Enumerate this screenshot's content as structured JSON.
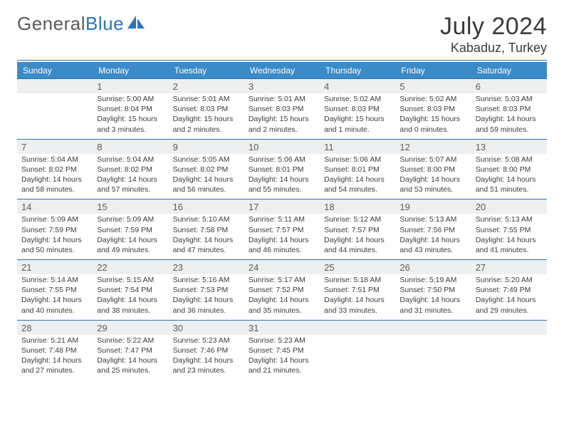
{
  "brand": {
    "name1": "General",
    "name2": "Blue",
    "logo_fill": "#2d74b8"
  },
  "header": {
    "month_title": "July 2024",
    "location": "Kabaduz, Turkey"
  },
  "colors": {
    "header_bg": "#3b8bc8",
    "header_text": "#ffffff",
    "rule": "#2e72af",
    "daynum_bg": "#edeff0",
    "page_bg": "#ffffff",
    "text": "#3c3c3c"
  },
  "weekdays": [
    "Sunday",
    "Monday",
    "Tuesday",
    "Wednesday",
    "Thursday",
    "Friday",
    "Saturday"
  ],
  "weeks": [
    {
      "daynums": [
        "",
        "1",
        "2",
        "3",
        "4",
        "5",
        "6"
      ],
      "cells": [
        null,
        {
          "sunrise": "Sunrise: 5:00 AM",
          "sunset": "Sunset: 8:04 PM",
          "day1": "Daylight: 15 hours",
          "day2": "and 3 minutes."
        },
        {
          "sunrise": "Sunrise: 5:01 AM",
          "sunset": "Sunset: 8:03 PM",
          "day1": "Daylight: 15 hours",
          "day2": "and 2 minutes."
        },
        {
          "sunrise": "Sunrise: 5:01 AM",
          "sunset": "Sunset: 8:03 PM",
          "day1": "Daylight: 15 hours",
          "day2": "and 2 minutes."
        },
        {
          "sunrise": "Sunrise: 5:02 AM",
          "sunset": "Sunset: 8:03 PM",
          "day1": "Daylight: 15 hours",
          "day2": "and 1 minute."
        },
        {
          "sunrise": "Sunrise: 5:02 AM",
          "sunset": "Sunset: 8:03 PM",
          "day1": "Daylight: 15 hours",
          "day2": "and 0 minutes."
        },
        {
          "sunrise": "Sunrise: 5:03 AM",
          "sunset": "Sunset: 8:03 PM",
          "day1": "Daylight: 14 hours",
          "day2": "and 59 minutes."
        }
      ]
    },
    {
      "daynums": [
        "7",
        "8",
        "9",
        "10",
        "11",
        "12",
        "13"
      ],
      "cells": [
        {
          "sunrise": "Sunrise: 5:04 AM",
          "sunset": "Sunset: 8:02 PM",
          "day1": "Daylight: 14 hours",
          "day2": "and 58 minutes."
        },
        {
          "sunrise": "Sunrise: 5:04 AM",
          "sunset": "Sunset: 8:02 PM",
          "day1": "Daylight: 14 hours",
          "day2": "and 57 minutes."
        },
        {
          "sunrise": "Sunrise: 5:05 AM",
          "sunset": "Sunset: 8:02 PM",
          "day1": "Daylight: 14 hours",
          "day2": "and 56 minutes."
        },
        {
          "sunrise": "Sunrise: 5:06 AM",
          "sunset": "Sunset: 8:01 PM",
          "day1": "Daylight: 14 hours",
          "day2": "and 55 minutes."
        },
        {
          "sunrise": "Sunrise: 5:06 AM",
          "sunset": "Sunset: 8:01 PM",
          "day1": "Daylight: 14 hours",
          "day2": "and 54 minutes."
        },
        {
          "sunrise": "Sunrise: 5:07 AM",
          "sunset": "Sunset: 8:00 PM",
          "day1": "Daylight: 14 hours",
          "day2": "and 53 minutes."
        },
        {
          "sunrise": "Sunrise: 5:08 AM",
          "sunset": "Sunset: 8:00 PM",
          "day1": "Daylight: 14 hours",
          "day2": "and 51 minutes."
        }
      ]
    },
    {
      "daynums": [
        "14",
        "15",
        "16",
        "17",
        "18",
        "19",
        "20"
      ],
      "cells": [
        {
          "sunrise": "Sunrise: 5:09 AM",
          "sunset": "Sunset: 7:59 PM",
          "day1": "Daylight: 14 hours",
          "day2": "and 50 minutes."
        },
        {
          "sunrise": "Sunrise: 5:09 AM",
          "sunset": "Sunset: 7:59 PM",
          "day1": "Daylight: 14 hours",
          "day2": "and 49 minutes."
        },
        {
          "sunrise": "Sunrise: 5:10 AM",
          "sunset": "Sunset: 7:58 PM",
          "day1": "Daylight: 14 hours",
          "day2": "and 47 minutes."
        },
        {
          "sunrise": "Sunrise: 5:11 AM",
          "sunset": "Sunset: 7:57 PM",
          "day1": "Daylight: 14 hours",
          "day2": "and 46 minutes."
        },
        {
          "sunrise": "Sunrise: 5:12 AM",
          "sunset": "Sunset: 7:57 PM",
          "day1": "Daylight: 14 hours",
          "day2": "and 44 minutes."
        },
        {
          "sunrise": "Sunrise: 5:13 AM",
          "sunset": "Sunset: 7:56 PM",
          "day1": "Daylight: 14 hours",
          "day2": "and 43 minutes."
        },
        {
          "sunrise": "Sunrise: 5:13 AM",
          "sunset": "Sunset: 7:55 PM",
          "day1": "Daylight: 14 hours",
          "day2": "and 41 minutes."
        }
      ]
    },
    {
      "daynums": [
        "21",
        "22",
        "23",
        "24",
        "25",
        "26",
        "27"
      ],
      "cells": [
        {
          "sunrise": "Sunrise: 5:14 AM",
          "sunset": "Sunset: 7:55 PM",
          "day1": "Daylight: 14 hours",
          "day2": "and 40 minutes."
        },
        {
          "sunrise": "Sunrise: 5:15 AM",
          "sunset": "Sunset: 7:54 PM",
          "day1": "Daylight: 14 hours",
          "day2": "and 38 minutes."
        },
        {
          "sunrise": "Sunrise: 5:16 AM",
          "sunset": "Sunset: 7:53 PM",
          "day1": "Daylight: 14 hours",
          "day2": "and 36 minutes."
        },
        {
          "sunrise": "Sunrise: 5:17 AM",
          "sunset": "Sunset: 7:52 PM",
          "day1": "Daylight: 14 hours",
          "day2": "and 35 minutes."
        },
        {
          "sunrise": "Sunrise: 5:18 AM",
          "sunset": "Sunset: 7:51 PM",
          "day1": "Daylight: 14 hours",
          "day2": "and 33 minutes."
        },
        {
          "sunrise": "Sunrise: 5:19 AM",
          "sunset": "Sunset: 7:50 PM",
          "day1": "Daylight: 14 hours",
          "day2": "and 31 minutes."
        },
        {
          "sunrise": "Sunrise: 5:20 AM",
          "sunset": "Sunset: 7:49 PM",
          "day1": "Daylight: 14 hours",
          "day2": "and 29 minutes."
        }
      ]
    },
    {
      "daynums": [
        "28",
        "29",
        "30",
        "31",
        "",
        "",
        ""
      ],
      "cells": [
        {
          "sunrise": "Sunrise: 5:21 AM",
          "sunset": "Sunset: 7:48 PM",
          "day1": "Daylight: 14 hours",
          "day2": "and 27 minutes."
        },
        {
          "sunrise": "Sunrise: 5:22 AM",
          "sunset": "Sunset: 7:47 PM",
          "day1": "Daylight: 14 hours",
          "day2": "and 25 minutes."
        },
        {
          "sunrise": "Sunrise: 5:23 AM",
          "sunset": "Sunset: 7:46 PM",
          "day1": "Daylight: 14 hours",
          "day2": "and 23 minutes."
        },
        {
          "sunrise": "Sunrise: 5:23 AM",
          "sunset": "Sunset: 7:45 PM",
          "day1": "Daylight: 14 hours",
          "day2": "and 21 minutes."
        },
        null,
        null,
        null
      ]
    }
  ]
}
